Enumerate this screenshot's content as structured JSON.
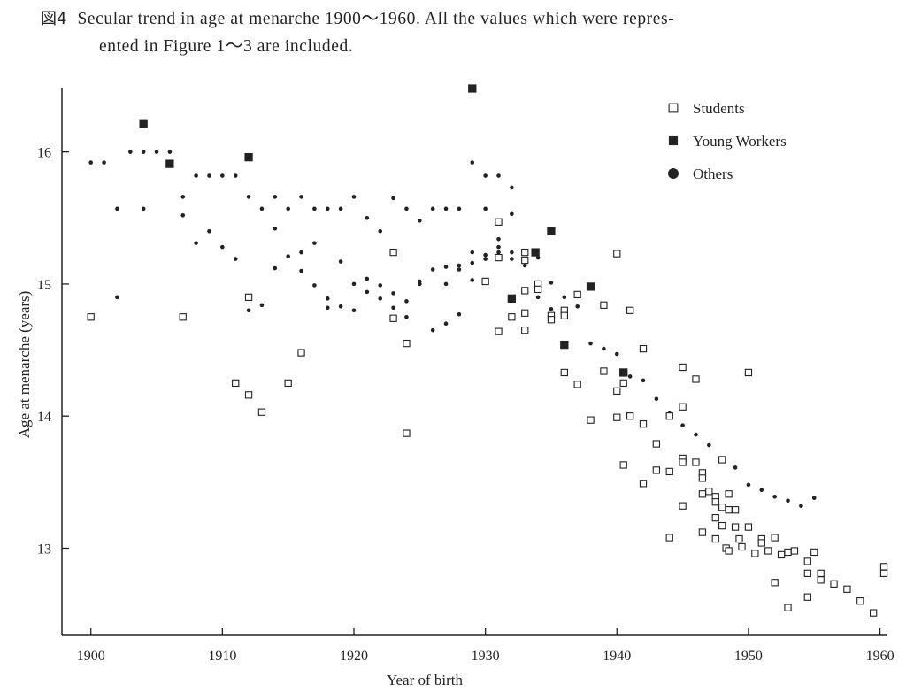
{
  "caption": {
    "label": "図4",
    "line1": "Secular trend in age at menarche 1900～1960.  All the values which were repres-",
    "line2": "ented in Figure 1～3 are included."
  },
  "chart_data": {
    "type": "scatter",
    "xlabel": "Year of birth",
    "ylabel": "Age at menarche (years)",
    "xlim": [
      1897.8,
      1960.5
    ],
    "ylim": [
      12.34,
      16.48
    ],
    "xticks": [
      1900,
      1910,
      1920,
      1930,
      1940,
      1950,
      1960
    ],
    "yticks": [
      13,
      14,
      15,
      16
    ],
    "legend_position": "top-right",
    "series": [
      {
        "name": "Students",
        "marker": "open-square",
        "color": "#222222",
        "points": [
          [
            1900,
            14.75
          ],
          [
            1907,
            14.75
          ],
          [
            1911,
            14.25
          ],
          [
            1912,
            14.9
          ],
          [
            1912,
            14.16
          ],
          [
            1913,
            14.03
          ],
          [
            1915,
            14.25
          ],
          [
            1916,
            14.48
          ],
          [
            1923,
            15.24
          ],
          [
            1923,
            14.74
          ],
          [
            1924,
            14.55
          ],
          [
            1924,
            13.87
          ],
          [
            1930,
            15.02
          ],
          [
            1931,
            15.47
          ],
          [
            1931,
            15.2
          ],
          [
            1931,
            14.64
          ],
          [
            1932,
            14.75
          ],
          [
            1933,
            15.24
          ],
          [
            1933,
            15.18
          ],
          [
            1933,
            14.95
          ],
          [
            1933,
            14.78
          ],
          [
            1933,
            14.65
          ],
          [
            1934,
            15.0
          ],
          [
            1934,
            14.96
          ],
          [
            1935,
            14.76
          ],
          [
            1935,
            14.73
          ],
          [
            1936,
            14.8
          ],
          [
            1936,
            14.76
          ],
          [
            1936,
            14.33
          ],
          [
            1937,
            14.92
          ],
          [
            1937,
            14.24
          ],
          [
            1938,
            13.97
          ],
          [
            1939,
            14.84
          ],
          [
            1939,
            14.34
          ],
          [
            1940,
            15.23
          ],
          [
            1940,
            14.19
          ],
          [
            1940,
            13.99
          ],
          [
            1940.5,
            14.25
          ],
          [
            1940.5,
            13.63
          ],
          [
            1941,
            14.8
          ],
          [
            1941,
            14.0
          ],
          [
            1942,
            14.51
          ],
          [
            1942,
            13.94
          ],
          [
            1942,
            13.49
          ],
          [
            1943,
            13.79
          ],
          [
            1943,
            13.59
          ],
          [
            1944,
            14.0
          ],
          [
            1944,
            13.58
          ],
          [
            1944,
            13.08
          ],
          [
            1945,
            14.37
          ],
          [
            1945,
            14.07
          ],
          [
            1945,
            13.68
          ],
          [
            1945,
            13.65
          ],
          [
            1945,
            13.32
          ],
          [
            1946,
            14.28
          ],
          [
            1946,
            13.65
          ],
          [
            1946.5,
            13.57
          ],
          [
            1946.5,
            13.53
          ],
          [
            1946.5,
            13.41
          ],
          [
            1946.5,
            13.12
          ],
          [
            1947,
            13.43
          ],
          [
            1947.5,
            13.39
          ],
          [
            1947.5,
            13.35
          ],
          [
            1947.5,
            13.23
          ],
          [
            1947.5,
            13.07
          ],
          [
            1948,
            13.67
          ],
          [
            1948,
            13.31
          ],
          [
            1948,
            13.17
          ],
          [
            1948.3,
            13.0
          ],
          [
            1948.5,
            13.41
          ],
          [
            1948.5,
            13.29
          ],
          [
            1948.5,
            12.98
          ],
          [
            1949,
            13.29
          ],
          [
            1949,
            13.16
          ],
          [
            1949.3,
            13.07
          ],
          [
            1949.5,
            13.01
          ],
          [
            1950,
            14.33
          ],
          [
            1950,
            13.16
          ],
          [
            1950.5,
            12.96
          ],
          [
            1951,
            13.07
          ],
          [
            1951,
            13.04
          ],
          [
            1951.5,
            12.98
          ],
          [
            1952,
            13.08
          ],
          [
            1952,
            12.74
          ],
          [
            1952.5,
            12.95
          ],
          [
            1953,
            12.97
          ],
          [
            1953,
            12.55
          ],
          [
            1953.5,
            12.98
          ],
          [
            1954.5,
            12.9
          ],
          [
            1954.5,
            12.81
          ],
          [
            1954.5,
            12.63
          ],
          [
            1955,
            12.97
          ],
          [
            1955.5,
            12.81
          ],
          [
            1955.5,
            12.76
          ],
          [
            1956.5,
            12.73
          ],
          [
            1957.5,
            12.69
          ],
          [
            1958.5,
            12.6
          ],
          [
            1959.5,
            12.51
          ],
          [
            1960.3,
            12.86
          ],
          [
            1960.3,
            12.81
          ]
        ]
      },
      {
        "name": "Young Workers",
        "marker": "filled-square",
        "color": "#222222",
        "points": [
          [
            1904,
            16.21
          ],
          [
            1906,
            15.91
          ],
          [
            1912,
            15.96
          ],
          [
            1929,
            16.48
          ],
          [
            1932,
            14.89
          ],
          [
            1933.8,
            15.24
          ],
          [
            1935,
            15.4
          ],
          [
            1936,
            14.54
          ],
          [
            1938,
            14.98
          ],
          [
            1940.5,
            14.33
          ]
        ]
      },
      {
        "name": "Others",
        "marker": "dot",
        "color": "#222222",
        "points": [
          [
            1900,
            15.92
          ],
          [
            1901,
            15.92
          ],
          [
            1902,
            15.57
          ],
          [
            1902,
            14.9
          ],
          [
            1903,
            16.0
          ],
          [
            1904,
            16.0
          ],
          [
            1904,
            15.57
          ],
          [
            1905,
            16.0
          ],
          [
            1906,
            16.0
          ],
          [
            1907,
            15.66
          ],
          [
            1907,
            15.52
          ],
          [
            1908,
            15.82
          ],
          [
            1908,
            15.31
          ],
          [
            1909,
            15.82
          ],
          [
            1909,
            15.4
          ],
          [
            1910,
            15.82
          ],
          [
            1910,
            15.28
          ],
          [
            1911,
            15.82
          ],
          [
            1911,
            15.19
          ],
          [
            1912,
            15.66
          ],
          [
            1912,
            14.8
          ],
          [
            1913,
            15.57
          ],
          [
            1913,
            14.84
          ],
          [
            1914,
            15.66
          ],
          [
            1914,
            15.42
          ],
          [
            1914,
            15.12
          ],
          [
            1915,
            15.57
          ],
          [
            1915,
            15.21
          ],
          [
            1916,
            15.66
          ],
          [
            1916,
            15.24
          ],
          [
            1916,
            15.1
          ],
          [
            1917,
            15.57
          ],
          [
            1917,
            15.31
          ],
          [
            1917,
            14.99
          ],
          [
            1918,
            15.57
          ],
          [
            1918,
            14.89
          ],
          [
            1918,
            14.82
          ],
          [
            1919,
            15.57
          ],
          [
            1919,
            15.17
          ],
          [
            1919,
            14.83
          ],
          [
            1920,
            15.66
          ],
          [
            1920,
            15.0
          ],
          [
            1920,
            14.8
          ],
          [
            1921,
            15.5
          ],
          [
            1921,
            15.04
          ],
          [
            1921,
            14.94
          ],
          [
            1922,
            15.4
          ],
          [
            1922,
            14.99
          ],
          [
            1922,
            14.89
          ],
          [
            1923,
            15.65
          ],
          [
            1923,
            14.93
          ],
          [
            1923,
            14.82
          ],
          [
            1924,
            15.57
          ],
          [
            1924,
            14.87
          ],
          [
            1924,
            14.75
          ],
          [
            1925,
            15.48
          ],
          [
            1925,
            15.02
          ],
          [
            1925,
            15.0
          ],
          [
            1926,
            15.57
          ],
          [
            1926,
            15.11
          ],
          [
            1926,
            14.65
          ],
          [
            1927,
            15.57
          ],
          [
            1927,
            15.13
          ],
          [
            1927,
            15.0
          ],
          [
            1927,
            14.7
          ],
          [
            1928,
            15.57
          ],
          [
            1928,
            15.14
          ],
          [
            1928,
            15.11
          ],
          [
            1928,
            14.77
          ],
          [
            1929,
            15.92
          ],
          [
            1929,
            15.24
          ],
          [
            1929,
            15.16
          ],
          [
            1929,
            15.03
          ],
          [
            1930,
            15.82
          ],
          [
            1930,
            15.57
          ],
          [
            1930,
            15.22
          ],
          [
            1930,
            15.19
          ],
          [
            1931,
            15.82
          ],
          [
            1931,
            15.34
          ],
          [
            1931,
            15.28
          ],
          [
            1931,
            15.24
          ],
          [
            1932,
            15.73
          ],
          [
            1932,
            15.53
          ],
          [
            1932,
            15.24
          ],
          [
            1932,
            15.19
          ],
          [
            1933,
            15.14
          ],
          [
            1934,
            15.2
          ],
          [
            1934,
            14.9
          ],
          [
            1935,
            15.01
          ],
          [
            1935,
            14.81
          ],
          [
            1936,
            14.9
          ],
          [
            1937,
            14.83
          ],
          [
            1938,
            14.55
          ],
          [
            1939,
            14.51
          ],
          [
            1940,
            14.47
          ],
          [
            1941,
            14.3
          ],
          [
            1942,
            14.27
          ],
          [
            1943,
            14.13
          ],
          [
            1944,
            14.02
          ],
          [
            1945,
            13.93
          ],
          [
            1946,
            13.86
          ],
          [
            1947,
            13.78
          ],
          [
            1948,
            13.67
          ],
          [
            1949,
            13.61
          ],
          [
            1950,
            13.48
          ],
          [
            1951,
            13.44
          ],
          [
            1952,
            13.39
          ],
          [
            1953,
            13.36
          ],
          [
            1954,
            13.32
          ],
          [
            1955,
            13.38
          ]
        ]
      }
    ]
  }
}
